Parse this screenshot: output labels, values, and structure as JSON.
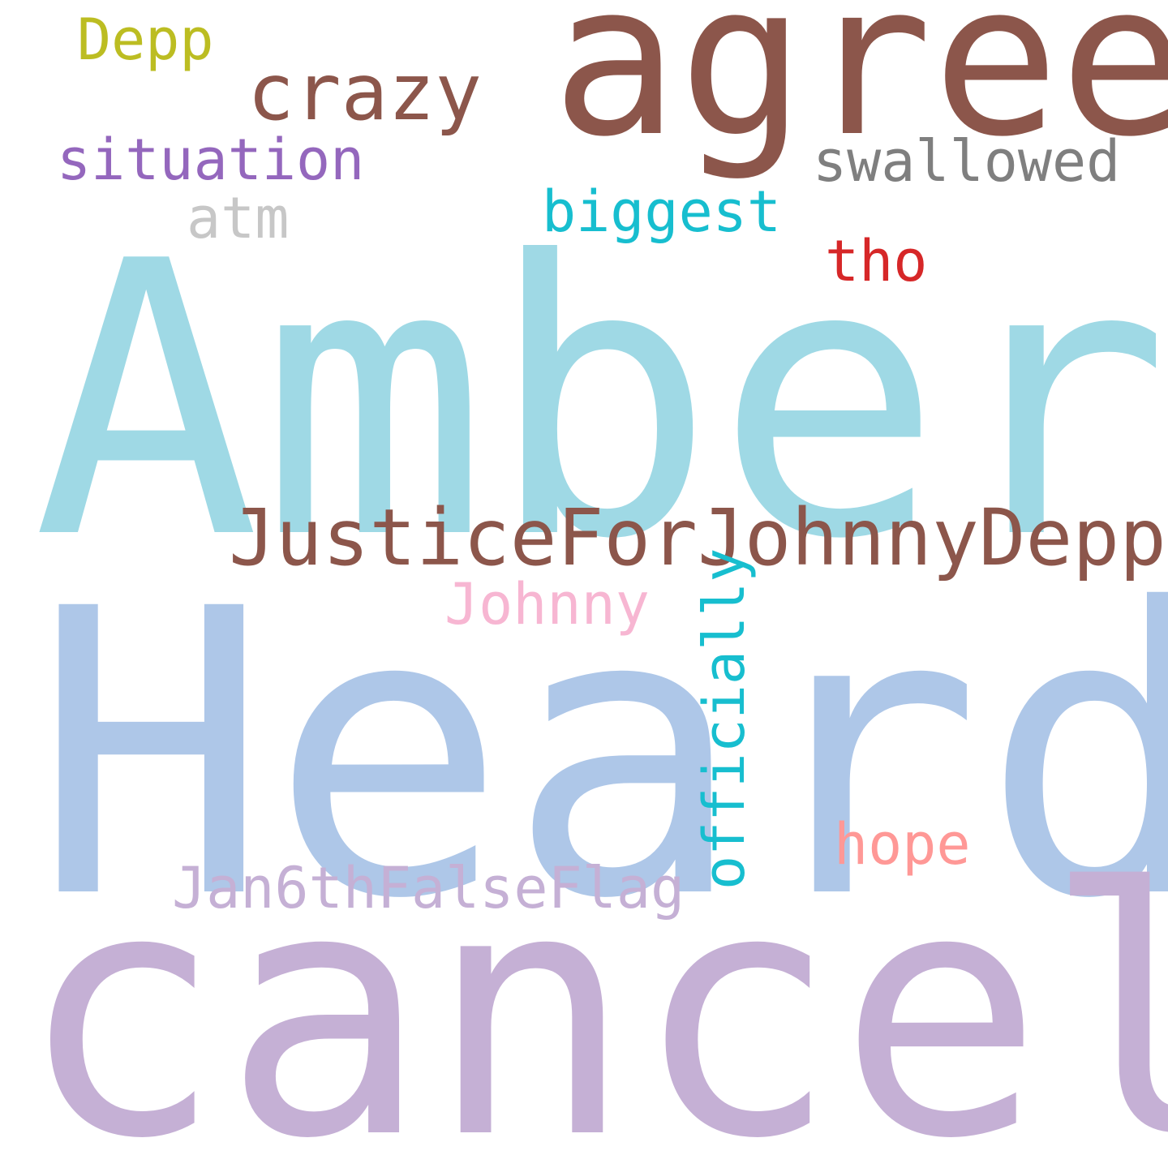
{
  "words": {
    "amber": {
      "text": "Amber",
      "color": "#9fd9e5"
    },
    "heard": {
      "text": "Heard",
      "color": "#aec7e8"
    },
    "cancel": {
      "text": "cancel",
      "color": "#c5b0d5"
    },
    "agree": {
      "text": "agree",
      "color": "#8c564b"
    },
    "justice": {
      "text": "JusticeForJohnnyDepp",
      "color": "#8c564b"
    },
    "crazy": {
      "text": "crazy",
      "color": "#8c564b"
    },
    "depp": {
      "text": "Depp",
      "color": "#bcbd22"
    },
    "situation": {
      "text": "situation",
      "color": "#9467bd"
    },
    "swallowed": {
      "text": "swallowed",
      "color": "#7f7f7f"
    },
    "atm": {
      "text": "atm",
      "color": "#c7c7c7"
    },
    "biggest": {
      "text": "biggest",
      "color": "#17becf"
    },
    "tho": {
      "text": "tho",
      "color": "#d62728"
    },
    "johnny": {
      "text": "Johnny",
      "color": "#f7b6d2"
    },
    "officially": {
      "text": "officially",
      "color": "#17becf"
    },
    "hope": {
      "text": "hope",
      "color": "#ff9896"
    },
    "jan6": {
      "text": "Jan6thFalseFlag",
      "color": "#c5b0d5"
    }
  }
}
